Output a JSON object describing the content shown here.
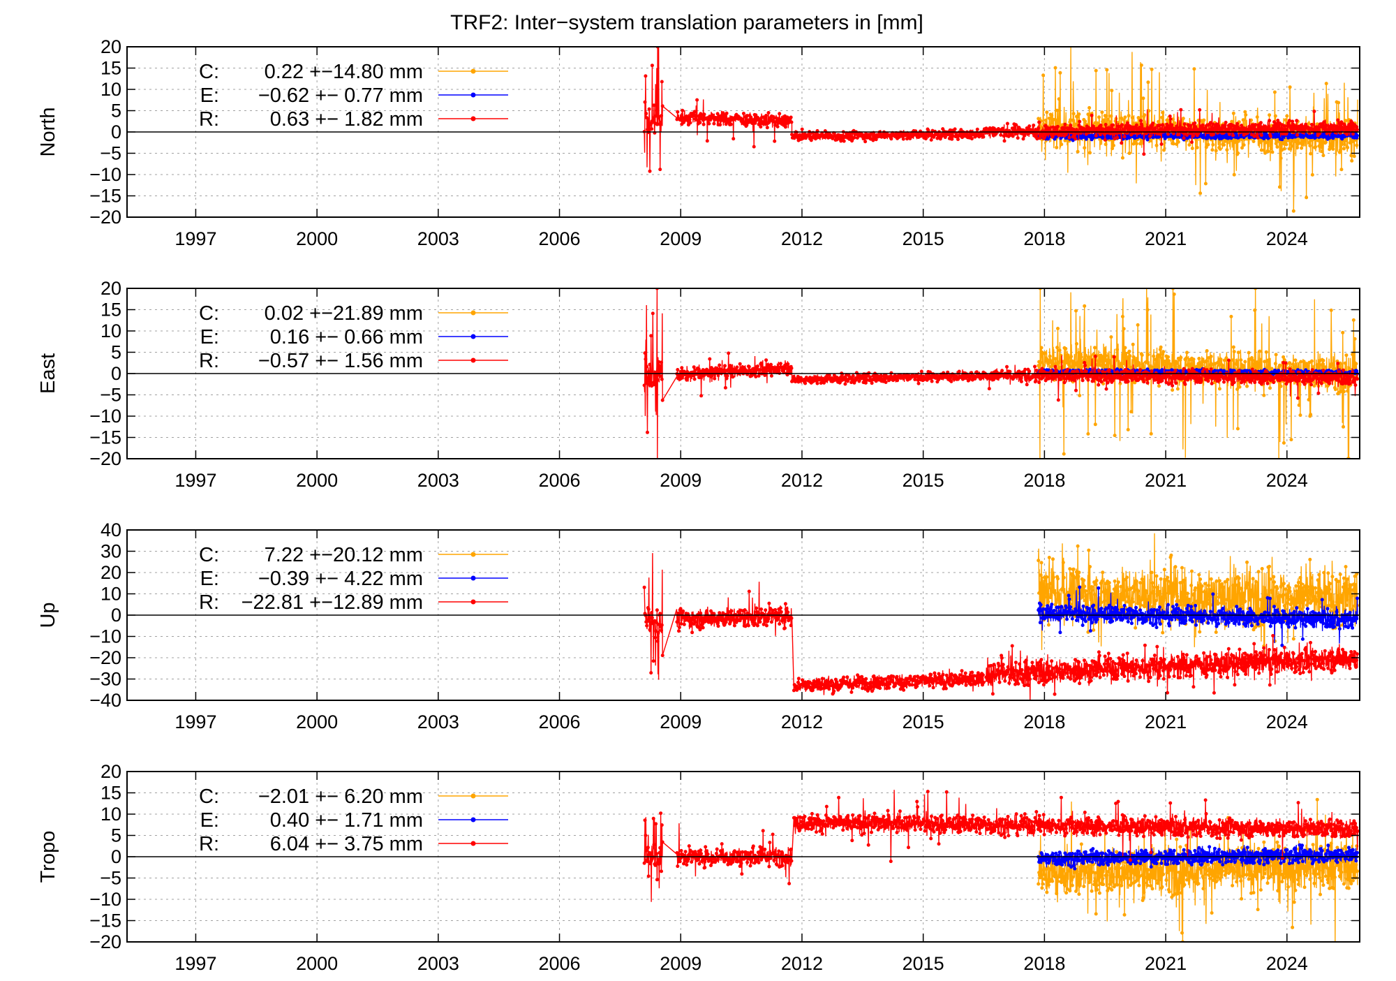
{
  "figure": {
    "title": "TRF2: Inter−system translation parameters in [mm]"
  },
  "colors": {
    "C": "#ffa500",
    "E": "#0000ff",
    "R": "#ff0000",
    "grid": "#a0a0a0",
    "zero_line": "#000000"
  },
  "chart_data": [
    {
      "type": "line",
      "ylabel": "North",
      "xlim": [
        1995.3,
        2025.8
      ],
      "ylim": [
        -20,
        20
      ],
      "x_ticks": [
        1997,
        2000,
        2003,
        2006,
        2009,
        2012,
        2015,
        2018,
        2021,
        2024
      ],
      "y_ticks": [
        -20,
        -15,
        -10,
        -5,
        0,
        5,
        10,
        15,
        20
      ],
      "grid": true,
      "zero_line": true,
      "legend_position": "top-left",
      "series": [
        {
          "key": "C",
          "name": "C:",
          "stats": "0.22 +−14.80 mm",
          "color": "#ffa500",
          "segments": [
            {
              "x0": 2017.85,
              "x1": 2025.75,
              "mean_start": 1.0,
              "mean_end": -1.5,
              "spread": 3.5,
              "spike_rate": 0.06,
              "spike_mag": 10
            }
          ]
        },
        {
          "key": "E",
          "name": "E:",
          "stats": "−0.62 +− 0.77 mm",
          "color": "#0000ff",
          "segments": [
            {
              "x0": 2017.85,
              "x1": 2025.75,
              "mean_start": -1.0,
              "mean_end": -0.8,
              "spread": 0.6,
              "spike_rate": 0.0,
              "spike_mag": 0
            }
          ]
        },
        {
          "key": "R",
          "name": "R:",
          "stats": "0.63 +− 1.82 mm",
          "color": "#ff0000",
          "segments": [
            {
              "x0": 2008.1,
              "x1": 2008.55,
              "mean_start": 2.5,
              "mean_end": 3.0,
              "spread": 2.5,
              "spike_rate": 0.2,
              "spike_mag": 12
            },
            {
              "x0": 2008.9,
              "x1": 2011.75,
              "mean_start": 3.5,
              "mean_end": 2.5,
              "spread": 1.3,
              "spike_rate": 0.03,
              "spike_mag": 4
            },
            {
              "x0": 2011.75,
              "x1": 2016.5,
              "mean_start": -1.0,
              "mean_end": -0.5,
              "spread": 0.9,
              "spike_rate": 0.0,
              "spike_mag": 0
            },
            {
              "x0": 2016.5,
              "x1": 2025.75,
              "mean_start": 0.0,
              "mean_end": 1.0,
              "spread": 1.3,
              "spike_rate": 0.02,
              "spike_mag": 3
            }
          ]
        }
      ]
    },
    {
      "type": "line",
      "ylabel": "East",
      "xlim": [
        1995.3,
        2025.8
      ],
      "ylim": [
        -20,
        20
      ],
      "x_ticks": [
        1997,
        2000,
        2003,
        2006,
        2009,
        2012,
        2015,
        2018,
        2021,
        2024
      ],
      "y_ticks": [
        -20,
        -15,
        -10,
        -5,
        0,
        5,
        10,
        15,
        20
      ],
      "grid": true,
      "zero_line": true,
      "legend_position": "top-left",
      "series": [
        {
          "key": "C",
          "name": "C:",
          "stats": "0.02 +−21.89 mm",
          "color": "#ffa500",
          "segments": [
            {
              "x0": 2017.85,
              "x1": 2025.75,
              "mean_start": 3.0,
              "mean_end": 0.0,
              "spread": 3.5,
              "spike_rate": 0.07,
              "spike_mag": 14
            }
          ]
        },
        {
          "key": "E",
          "name": "E:",
          "stats": "0.16 +− 0.66 mm",
          "color": "#0000ff",
          "segments": [
            {
              "x0": 2017.85,
              "x1": 2025.75,
              "mean_start": 0.4,
              "mean_end": 0.2,
              "spread": 0.5,
              "spike_rate": 0.0,
              "spike_mag": 0
            }
          ]
        },
        {
          "key": "R",
          "name": "R:",
          "stats": "−0.57 +− 1.56 mm",
          "color": "#ff0000",
          "segments": [
            {
              "x0": 2008.1,
              "x1": 2008.55,
              "mean_start": -1.0,
              "mean_end": 1.0,
              "spread": 3.0,
              "spike_rate": 0.2,
              "spike_mag": 12
            },
            {
              "x0": 2008.9,
              "x1": 2011.75,
              "mean_start": -0.5,
              "mean_end": 1.5,
              "spread": 1.3,
              "spike_rate": 0.03,
              "spike_mag": 3
            },
            {
              "x0": 2011.75,
              "x1": 2016.5,
              "mean_start": -1.5,
              "mean_end": -0.5,
              "spread": 0.9,
              "spike_rate": 0.0,
              "spike_mag": 0
            },
            {
              "x0": 2016.5,
              "x1": 2025.75,
              "mean_start": -0.5,
              "mean_end": -1.0,
              "spread": 1.3,
              "spike_rate": 0.02,
              "spike_mag": 3
            }
          ]
        }
      ]
    },
    {
      "type": "line",
      "ylabel": "Up",
      "xlim": [
        1995.3,
        2025.8
      ],
      "ylim": [
        -40,
        40
      ],
      "x_ticks": [
        1997,
        2000,
        2003,
        2006,
        2009,
        2012,
        2015,
        2018,
        2021,
        2024
      ],
      "y_ticks": [
        -40,
        -30,
        -20,
        -10,
        0,
        10,
        20,
        30,
        40
      ],
      "grid": true,
      "zero_line": true,
      "legend_position": "top-left",
      "series": [
        {
          "key": "C",
          "name": "C:",
          "stats": "7.22 +−20.12 mm",
          "color": "#ffa500",
          "segments": [
            {
              "x0": 2017.85,
              "x1": 2025.75,
              "mean_start": 10.0,
              "mean_end": 8.0,
              "spread": 11.0,
              "spike_rate": 0.05,
              "spike_mag": 15
            }
          ]
        },
        {
          "key": "E",
          "name": "E:",
          "stats": "−0.39 +− 4.22 mm",
          "color": "#0000ff",
          "segments": [
            {
              "x0": 2017.85,
              "x1": 2025.75,
              "mean_start": 1.0,
              "mean_end": -2.0,
              "spread": 3.5,
              "spike_rate": 0.02,
              "spike_mag": 8
            }
          ]
        },
        {
          "key": "R",
          "name": "R:",
          "stats": "−22.81 +−12.89 mm",
          "color": "#ff0000",
          "segments": [
            {
              "x0": 2008.1,
              "x1": 2008.55,
              "mean_start": 0.0,
              "mean_end": -5.0,
              "spread": 6.0,
              "spike_rate": 0.2,
              "spike_mag": 20
            },
            {
              "x0": 2008.9,
              "x1": 2011.75,
              "mean_start": -2.0,
              "mean_end": 0.0,
              "spread": 4.0,
              "spike_rate": 0.03,
              "spike_mag": 10
            },
            {
              "x0": 2011.8,
              "x1": 2016.5,
              "mean_start": -33.0,
              "mean_end": -30.0,
              "spread": 3.0,
              "spike_rate": 0.0,
              "spike_mag": 0
            },
            {
              "x0": 2016.55,
              "x1": 2025.75,
              "mean_start": -28.0,
              "mean_end": -20.0,
              "spread": 5.0,
              "spike_rate": 0.03,
              "spike_mag": 8
            }
          ]
        }
      ]
    },
    {
      "type": "line",
      "ylabel": "Tropo",
      "xlim": [
        1995.3,
        2025.8
      ],
      "ylim": [
        -20,
        20
      ],
      "x_ticks": [
        1997,
        2000,
        2003,
        2006,
        2009,
        2012,
        2015,
        2018,
        2021,
        2024
      ],
      "y_ticks": [
        -20,
        -15,
        -10,
        -5,
        0,
        5,
        10,
        15,
        20
      ],
      "grid": true,
      "zero_line": true,
      "legend_position": "top-left",
      "series": [
        {
          "key": "C",
          "name": "C:",
          "stats": "−2.01 +− 6.20 mm",
          "color": "#ffa500",
          "segments": [
            {
              "x0": 2017.85,
              "x1": 2025.75,
              "mean_start": -4.0,
              "mean_end": -2.0,
              "spread": 4.5,
              "spike_rate": 0.04,
              "spike_mag": 10
            }
          ]
        },
        {
          "key": "E",
          "name": "E:",
          "stats": "0.40 +− 1.71 mm",
          "color": "#0000ff",
          "segments": [
            {
              "x0": 2017.85,
              "x1": 2025.75,
              "mean_start": -0.5,
              "mean_end": 0.5,
              "spread": 1.5,
              "spike_rate": 0.0,
              "spike_mag": 0
            }
          ]
        },
        {
          "key": "R",
          "name": "R:",
          "stats": "6.04 +− 3.75 mm",
          "color": "#ff0000",
          "segments": [
            {
              "x0": 2008.1,
              "x1": 2008.55,
              "mean_start": 0.0,
              "mean_end": 1.0,
              "spread": 2.5,
              "spike_rate": 0.2,
              "spike_mag": 6
            },
            {
              "x0": 2008.9,
              "x1": 2011.75,
              "mean_start": 0.0,
              "mean_end": 0.0,
              "spread": 1.7,
              "spike_rate": 0.03,
              "spike_mag": 5
            },
            {
              "x0": 2011.8,
              "x1": 2025.75,
              "mean_start": 8.0,
              "mean_end": 6.5,
              "spread": 1.8,
              "spike_rate": 0.02,
              "spike_mag": 5
            }
          ]
        }
      ]
    }
  ]
}
